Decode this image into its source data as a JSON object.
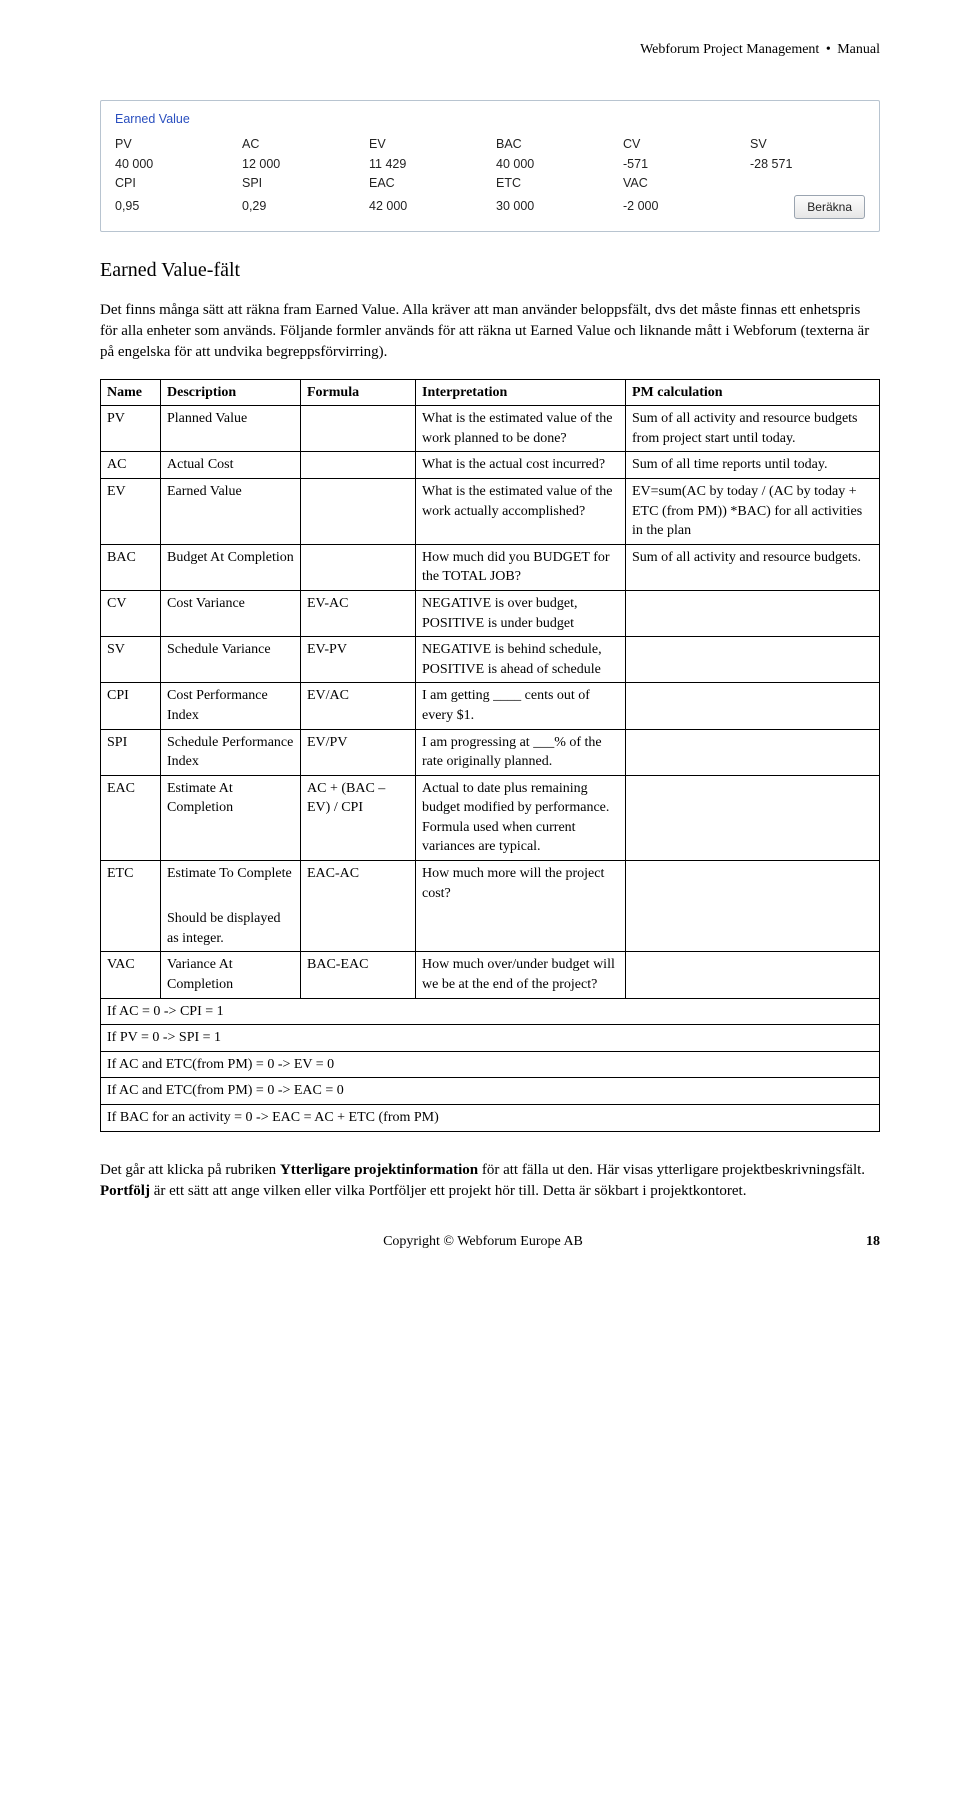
{
  "header": {
    "product": "Webforum Project Management",
    "bullet": "•",
    "docType": "Manual"
  },
  "evPanel": {
    "legend": "Earned Value",
    "row1Labels": {
      "pv": "PV",
      "ac": "AC",
      "ev": "EV",
      "bac": "BAC",
      "cv": "CV",
      "sv": "SV"
    },
    "row1Values": {
      "pv": "40 000",
      "ac": "12 000",
      "ev": "11 429",
      "bac": "40 000",
      "cv": "-571",
      "sv": "-28 571"
    },
    "row2Labels": {
      "cpi": "CPI",
      "spi": "SPI",
      "eac": "EAC",
      "etc": "ETC",
      "vac": "VAC"
    },
    "row2Values": {
      "cpi": "0,95",
      "spi": "0,29",
      "eac": "42 000",
      "etc": "30 000",
      "vac": "-2 000"
    },
    "button": "Beräkna"
  },
  "titles": {
    "section": "Earned Value-fält"
  },
  "paragraphs": {
    "p1": "Det finns många sätt att räkna fram Earned Value. Alla kräver att man använder beloppsfält, dvs det måste finnas ett enhetspris för alla enheter som används. Följande formler används för att räkna ut Earned Value och liknande mått i Webforum (texterna är på engelska för att undvika begreppsförvirring).",
    "p2a": "Det går att klicka på rubriken ",
    "p2b": "Ytterligare projektinformation",
    "p2c": " för att fälla ut den. Här visas ytterligare projektbeskrivningsfält. ",
    "p2d": "Portfölj",
    "p2e": " är ett sätt att ange vilken eller vilka Portföljer ett projekt hör till. Detta är sökbart i projektkontoret."
  },
  "table": {
    "headers": {
      "name": "Name",
      "desc": "Description",
      "formula": "Formula",
      "interp": "Interpretation",
      "pmcalc": "PM calculation"
    },
    "rows": [
      {
        "name": "PV",
        "desc": "Planned Value",
        "formula": "",
        "interp": "What is the estimated value of the work planned to be done?",
        "pmcalc": "Sum of all activity and resource budgets from project start until today."
      },
      {
        "name": "AC",
        "desc": "Actual Cost",
        "formula": "",
        "interp": "What is the actual cost incurred?",
        "pmcalc": "Sum of all time reports until today."
      },
      {
        "name": "EV",
        "desc": "Earned Value",
        "formula": "",
        "interp": "What is the estimated value of the work actually accomplished?",
        "pmcalc": "EV=sum(AC by today / (AC by today + ETC (from PM)) *BAC) for all activities in the plan"
      },
      {
        "name": "BAC",
        "desc": "Budget At Completion",
        "formula": "",
        "interp": "How much did you BUDGET for the TOTAL JOB?",
        "pmcalc": "Sum of all activity and resource budgets."
      },
      {
        "name": "CV",
        "desc": "Cost Variance",
        "formula": "EV-AC",
        "interp": "NEGATIVE is over budget, POSITIVE is under budget",
        "pmcalc": ""
      },
      {
        "name": "SV",
        "desc": "Schedule Variance",
        "formula": "EV-PV",
        "interp": "NEGATIVE is behind schedule, POSITIVE is ahead of schedule",
        "pmcalc": ""
      },
      {
        "name": "CPI",
        "desc": "Cost Performance Index",
        "formula": "EV/AC",
        "interp": "I am getting ____ cents out of every $1.",
        "pmcalc": ""
      },
      {
        "name": "SPI",
        "desc": "Schedule Performance Index",
        "formula": "EV/PV",
        "interp": "I am progressing at ___% of the rate originally planned.",
        "pmcalc": ""
      },
      {
        "name": "EAC",
        "desc": "Estimate At Completion",
        "formula": "AC + (BAC – EV) / CPI",
        "interp": "Actual to date plus remaining budget modified by performance. Formula used when current variances are typical.",
        "pmcalc": ""
      },
      {
        "name": "ETC",
        "desc": "Estimate To Complete",
        "formula": "EAC-AC",
        "interp": "How much more will the project cost?",
        "pmcalc": ""
      }
    ],
    "etcNote": "Should be displayed as integer.",
    "vac": {
      "name": "VAC",
      "desc": "Variance At Completion",
      "formula": "BAC-EAC",
      "interp": "How much over/under budget will we be at the end of the project?",
      "pmcalc": ""
    },
    "footnotes": [
      "If AC = 0 -> CPI = 1",
      "If PV = 0 -> SPI = 1",
      "If AC and ETC(from PM) = 0 -> EV = 0",
      "If AC and ETC(from PM) = 0 -> EAC = 0",
      "If BAC for an activity = 0 -> EAC = AC + ETC (from PM)"
    ]
  },
  "footer": {
    "copyright": "Copyright",
    "symbol": "©",
    "company": "Webforum Europe AB",
    "page": "18"
  }
}
